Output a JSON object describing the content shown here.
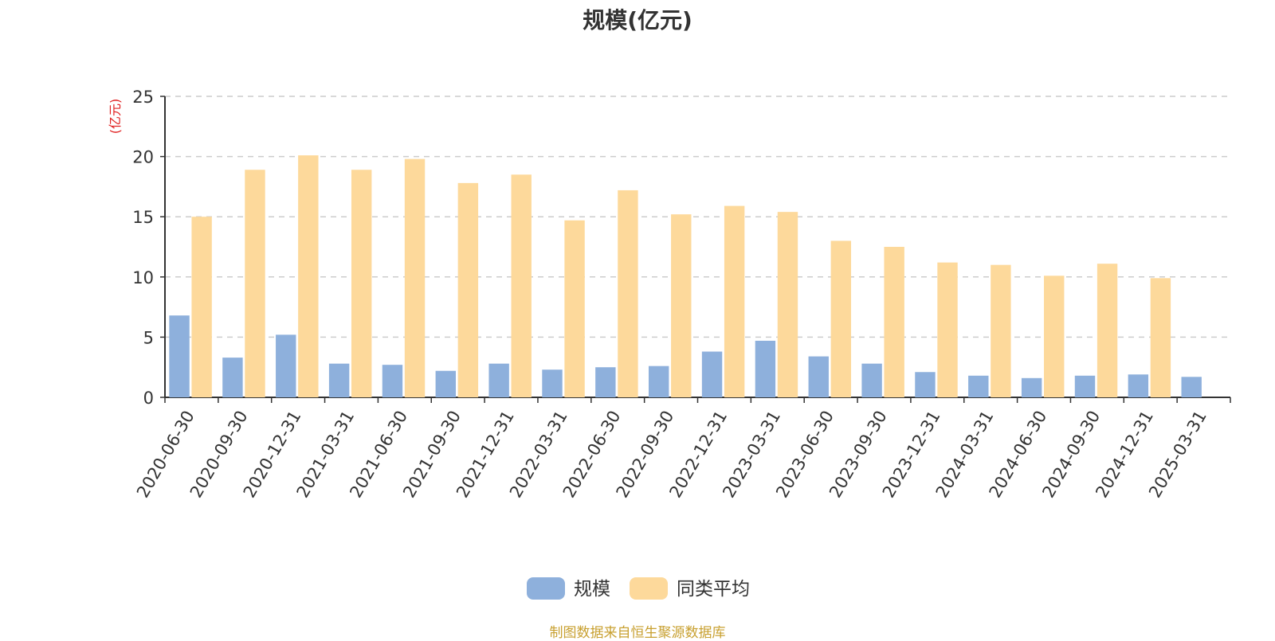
{
  "source_note": "制图数据来自恒生聚源数据库",
  "colors": {
    "scale": "#8eb0dc",
    "peer_avg": "#fdd99b",
    "ylabel": "#e02020",
    "source_note": "#c8a030",
    "title": "#333333",
    "grid": "#cccccc",
    "axis": "#333333"
  },
  "chart_data": {
    "type": "bar",
    "title": "规模(亿元)",
    "ylabel": "(亿元)",
    "xlabel": "",
    "ylim": [
      0,
      25
    ],
    "yticks": [
      0,
      5,
      10,
      15,
      20,
      25
    ],
    "grid": true,
    "legend_position": "bottom-center",
    "categories": [
      "2020-06-30",
      "2020-09-30",
      "2020-12-31",
      "2021-03-31",
      "2021-06-30",
      "2021-09-30",
      "2021-12-31",
      "2022-03-31",
      "2022-06-30",
      "2022-09-30",
      "2022-12-31",
      "2023-03-31",
      "2023-06-30",
      "2023-09-30",
      "2023-12-31",
      "2024-03-31",
      "2024-06-30",
      "2024-09-30",
      "2024-12-31",
      "2025-03-31"
    ],
    "series": [
      {
        "name": "规模",
        "values": [
          6.8,
          3.3,
          5.2,
          2.8,
          2.7,
          2.2,
          2.8,
          2.3,
          2.5,
          2.6,
          3.8,
          4.7,
          3.4,
          2.8,
          2.1,
          1.8,
          1.6,
          1.8,
          1.9,
          1.7
        ]
      },
      {
        "name": "同类平均",
        "values": [
          15.0,
          18.9,
          20.1,
          18.9,
          19.8,
          17.8,
          18.5,
          14.7,
          17.2,
          15.2,
          15.9,
          15.4,
          13.0,
          12.5,
          11.2,
          11.0,
          10.1,
          11.1,
          9.9,
          null
        ]
      }
    ]
  }
}
